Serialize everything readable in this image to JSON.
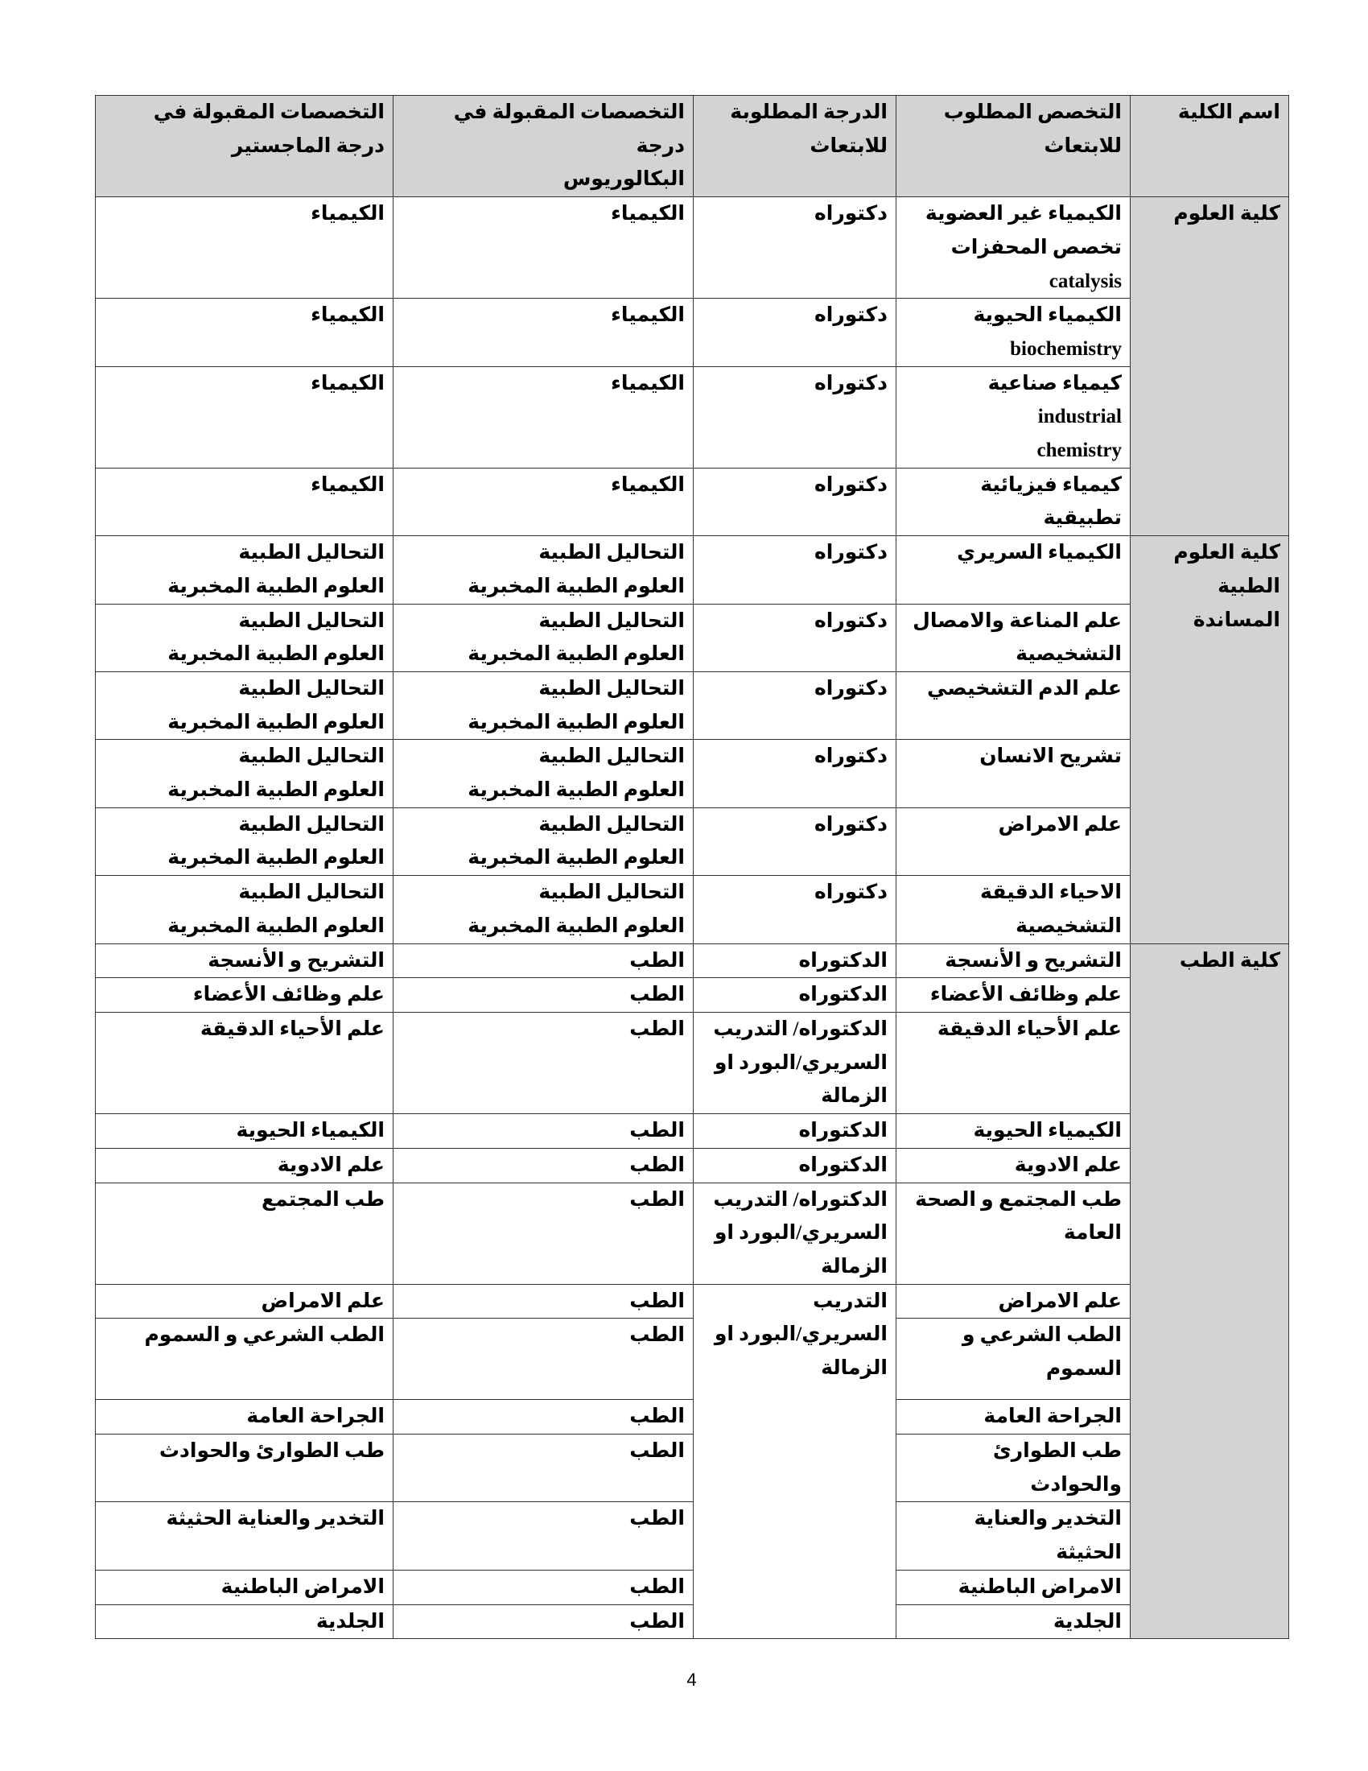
{
  "header": [
    "اسم الكلية",
    "التخصص المطلوب\nللابتعاث",
    "الدرجة المطلوبة\nللابتعاث",
    "التخصصات المقبولة في درجة\nالبكالوريوس",
    "التخصصات المقبولة في\nدرجة الماجستير"
  ],
  "colleges": [
    {
      "name": "كلية العلوم",
      "rows": [
        {
          "specialty": "الكيمياء غير العضوية\nتخصص المحفزات\ncatalysis",
          "degree": "دكتوراه",
          "bachelor": "الكيمياء",
          "master": "الكيمياء"
        },
        {
          "specialty": "الكيمياء الحيوية\nbiochemistry",
          "degree": "دكتوراه",
          "bachelor": "الكيمياء",
          "master": "الكيمياء"
        },
        {
          "specialty": "كيمياء صناعية\nindustrial\nchemistry",
          "degree": "دكتوراه",
          "bachelor": "الكيمياء",
          "master": "الكيمياء"
        },
        {
          "specialty": "كيمياء فيزيائية\nتطبيقية",
          "degree": "دكتوراه",
          "bachelor": "الكيمياء",
          "master": "الكيمياء"
        }
      ]
    },
    {
      "name": "كلية العلوم\nالطبية\nالمساندة",
      "rows": [
        {
          "specialty": "الكيمياء السريري",
          "degree": "دكتوراه",
          "bachelor": "التحاليل الطبية\nالعلوم الطبية المخبرية",
          "master": "التحاليل الطبية\nالعلوم الطبية المخبرية"
        },
        {
          "specialty": "علم المناعة والامصال\nالتشخيصية",
          "degree": "دكتوراه",
          "bachelor": "التحاليل الطبية\nالعلوم الطبية المخبرية",
          "master": "التحاليل الطبية\nالعلوم الطبية المخبرية"
        },
        {
          "specialty": "علم الدم التشخيصي",
          "degree": "دكتوراه",
          "bachelor": "التحاليل الطبية\nالعلوم الطبية المخبرية",
          "master": "التحاليل الطبية\nالعلوم الطبية المخبرية"
        },
        {
          "specialty": "تشريح الانسان",
          "degree": "دكتوراه",
          "bachelor": "التحاليل الطبية\nالعلوم الطبية المخبرية",
          "master": "التحاليل الطبية\nالعلوم الطبية المخبرية"
        },
        {
          "specialty": "علم الامراض",
          "degree": "دكتوراه",
          "bachelor": "التحاليل الطبية\nالعلوم الطبية المخبرية",
          "master": "التحاليل الطبية\nالعلوم الطبية المخبرية"
        },
        {
          "specialty": "الاحياء الدقيقة\nالتشخيصية",
          "degree": "دكتوراه",
          "bachelor": "التحاليل الطبية\nالعلوم الطبية المخبرية",
          "master": "التحاليل الطبية\nالعلوم الطبية المخبرية"
        }
      ]
    },
    {
      "name": "كلية الطب",
      "rows": [
        {
          "specialty": "التشريح و الأنسجة",
          "degree": "الدكتوراه",
          "bachelor": "الطب",
          "master": "التشريح و الأنسجة"
        },
        {
          "specialty": "علم وظائف الأعضاء",
          "degree": "الدكتوراه",
          "bachelor": "الطب",
          "master": "علم وظائف الأعضاء"
        },
        {
          "specialty": "علم الأحياء الدقيقة",
          "degree": "الدكتوراه/ التدريب\nالسريري/البورد او\nالزمالة",
          "bachelor": "الطب",
          "master": "علم الأحياء الدقيقة"
        },
        {
          "specialty": "الكيمياء الحيوية",
          "degree": "الدكتوراه",
          "bachelor": "الطب",
          "master": "الكيمياء الحيوية"
        },
        {
          "specialty": "علم الادوية",
          "degree": "الدكتوراه",
          "bachelor": "الطب",
          "master": "علم الادوية"
        },
        {
          "specialty": "طب المجتمع و الصحة\nالعامة",
          "degree": "الدكتوراه/ التدريب\nالسريري/البورد او\nالزمالة",
          "bachelor": "الطب",
          "master": "طب المجتمع"
        },
        {
          "specialty": "علم الامراض",
          "degree": "التدريب\nالسريري/البورد او\nالزمالة",
          "degree_rowspan": 7,
          "bachelor": "الطب",
          "master": "علم الامراض"
        },
        {
          "specialty": "الطب الشرعي و\nالسموم",
          "bachelor": "الطب",
          "master": "الطب الشرعي و السموم"
        },
        {
          "specialty": "الجراحة العامة",
          "bachelor": "الطب",
          "master": "الجراحة العامة"
        },
        {
          "specialty": "طب الطوارئ\nوالحوادث",
          "bachelor": "الطب",
          "master": "طب الطوارئ والحوادث"
        },
        {
          "specialty": "التخدير والعناية\nالحثيثة",
          "bachelor": "الطب",
          "master": "التخدير والعناية الحثيثة"
        },
        {
          "specialty": "الامراض الباطنية",
          "bachelor": "الطب",
          "master": "الامراض الباطنية"
        },
        {
          "specialty": "الجلدية",
          "bachelor": "الطب",
          "master": "الجلدية"
        }
      ]
    }
  ],
  "page_number": "4",
  "colors": {
    "header_bg": "#d3d3d3",
    "college_bg": "#d3d3d3"
  }
}
